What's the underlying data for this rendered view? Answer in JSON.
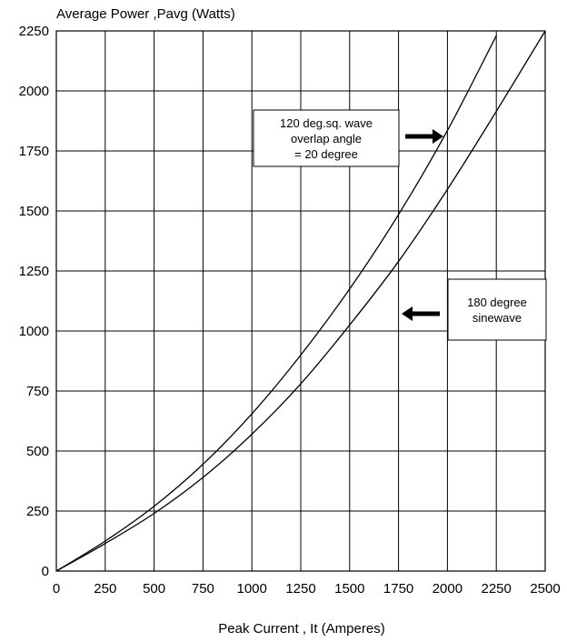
{
  "chart_data": {
    "type": "line",
    "title": "",
    "ylabel": "Average Power ,Pavg (Watts)",
    "xlabel": "Peak Current , It (Amperes)",
    "xlim": [
      0,
      2500
    ],
    "ylim": [
      0,
      2250
    ],
    "x_ticks": [
      "0",
      "250",
      "500",
      "750",
      "1000",
      "1250",
      "1500",
      "1750",
      "2000",
      "2250",
      "2500"
    ],
    "y_ticks": [
      "0",
      "250",
      "500",
      "750",
      "1000",
      "1250",
      "1500",
      "1750",
      "2000",
      "2250"
    ],
    "grid": true,
    "series": [
      {
        "name": "120 deg.sq. wave overlap angle = 20 degree",
        "x": [
          0,
          250,
          500,
          750,
          1000,
          1250,
          1500,
          1750,
          2000,
          2250
        ],
        "y": [
          0,
          125,
          270,
          445,
          655,
          900,
          1175,
          1485,
          1835,
          2230
        ]
      },
      {
        "name": "180 degree sinewave",
        "x": [
          0,
          250,
          500,
          750,
          1000,
          1250,
          1500,
          1750,
          2000,
          2250,
          2500
        ],
        "y": [
          0,
          115,
          240,
          390,
          570,
          780,
          1025,
          1290,
          1590,
          1915,
          2250
        ]
      }
    ],
    "annotations": [
      {
        "lines": [
          "120 deg.sq. wave",
          "overlap angle",
          "= 20 degree"
        ],
        "arrow": "right"
      },
      {
        "lines": [
          "180 degree",
          "sinewave"
        ],
        "arrow": "left"
      }
    ]
  }
}
